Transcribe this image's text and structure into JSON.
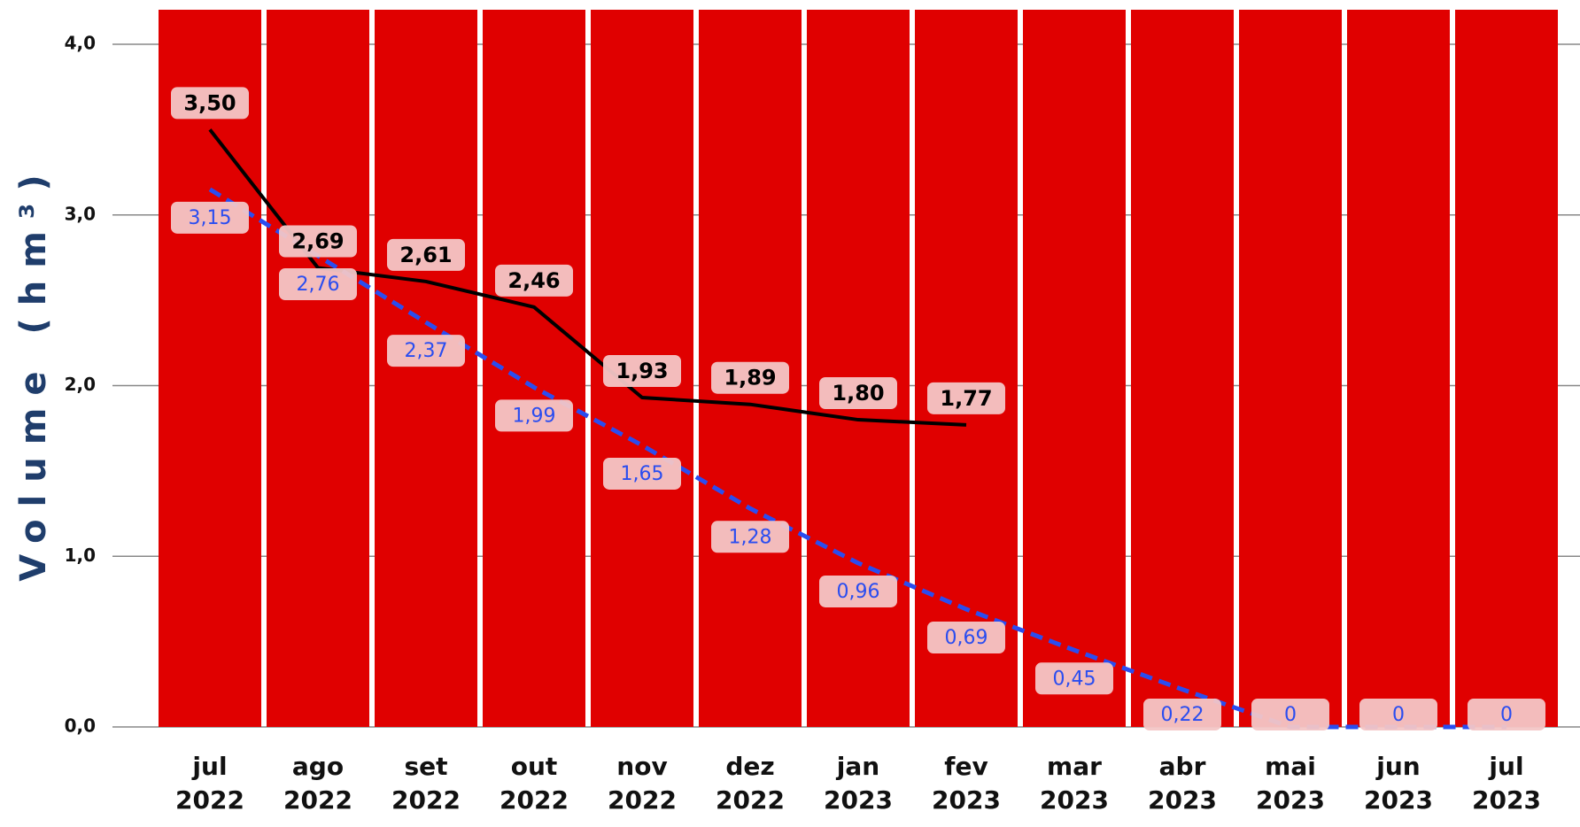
{
  "chart_data": {
    "type": "line",
    "y_label": "Volume (hm³)",
    "categories": [
      "jul\n2022",
      "ago\n2022",
      "set\n2022",
      "out\n2022",
      "nov\n2022",
      "dez\n2022",
      "jan\n2023",
      "fev\n2023",
      "mar\n2023",
      "abr\n2023",
      "mai\n2023",
      "jun\n2023",
      "jul\n2023"
    ],
    "band_color": "#e00000",
    "series": [
      {
        "color": "#000000",
        "dashed": false,
        "values": [
          3.5,
          2.69,
          2.61,
          2.46,
          1.93,
          1.89,
          1.8,
          1.77,
          null,
          null,
          null,
          null,
          null
        ],
        "value_labels": [
          "3,50",
          "2,69",
          "2,61",
          "2,46",
          "1,93",
          "1,89",
          "1,80",
          "1,77",
          null,
          null,
          null,
          null,
          null
        ]
      },
      {
        "color": "#2a4df0",
        "dashed": true,
        "values": [
          3.15,
          2.76,
          2.37,
          1.99,
          1.65,
          1.28,
          0.96,
          0.69,
          0.45,
          0.22,
          0,
          0,
          0
        ],
        "value_labels": [
          "3,15",
          "2,76",
          "2,37",
          "1,99",
          "1,65",
          "1,28",
          "0,96",
          "0,69",
          "0,45",
          "0,22",
          "0",
          "0",
          "0"
        ]
      }
    ],
    "ylim": [
      0,
      4
    ],
    "yticks": [
      {
        "value": 0,
        "label": "0,0"
      },
      {
        "value": 1,
        "label": "1,0"
      },
      {
        "value": 2,
        "label": "2,0"
      },
      {
        "value": 3,
        "label": "3,0"
      },
      {
        "value": 4,
        "label": "4,0"
      }
    ],
    "grid": true
  }
}
